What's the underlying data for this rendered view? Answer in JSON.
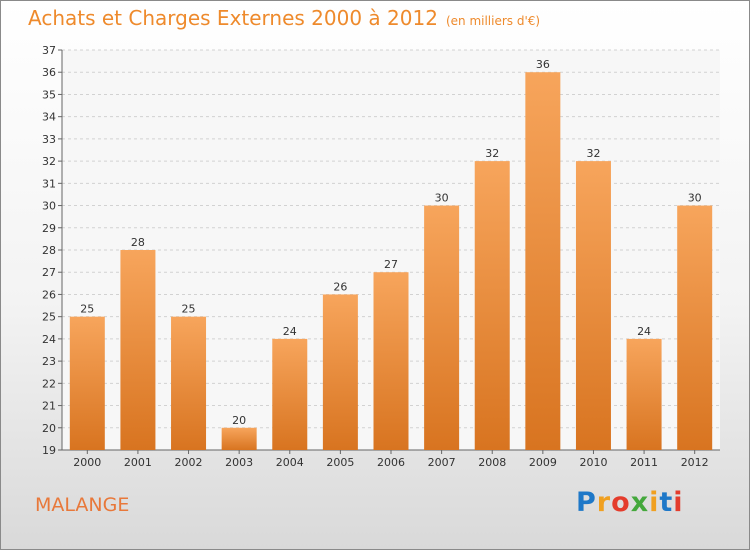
{
  "header": {
    "title": "Achats et Charges Externes 2000 à 2012",
    "unit": "(en milliers d'€)"
  },
  "footer": {
    "commune": "MALANGE",
    "brand": "Proxiti"
  },
  "colors": {
    "accent": "#ee8a2c",
    "bar_top": "#f7a55c",
    "bar_bottom": "#d87420"
  },
  "chart_data": {
    "type": "bar",
    "title": "Achats et Charges Externes 2000 à 2012",
    "subtitle": "(en milliers d'€)",
    "categories": [
      "2000",
      "2001",
      "2002",
      "2003",
      "2004",
      "2005",
      "2006",
      "2007",
      "2008",
      "2009",
      "2010",
      "2011",
      "2012"
    ],
    "values": [
      25,
      28,
      25,
      20,
      24,
      26,
      27,
      30,
      32,
      36,
      32,
      24,
      30
    ],
    "ylim": [
      19,
      37
    ],
    "yticks": [
      19,
      20,
      21,
      22,
      23,
      24,
      25,
      26,
      27,
      28,
      29,
      30,
      31,
      32,
      33,
      34,
      35,
      36,
      37
    ],
    "grid": true
  }
}
